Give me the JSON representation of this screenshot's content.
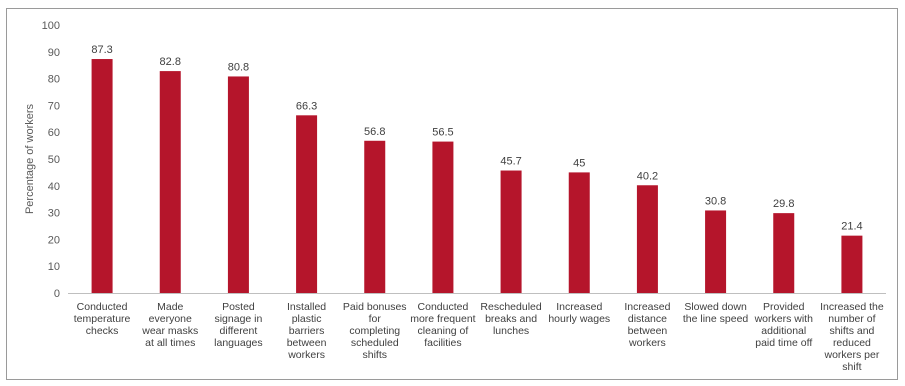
{
  "chart_data": {
    "type": "bar",
    "title": "",
    "xlabel": "",
    "ylabel": "Percentage of workers",
    "ylim": [
      0,
      100
    ],
    "yticks": [
      0,
      10,
      20,
      30,
      40,
      50,
      60,
      70,
      80,
      90,
      100
    ],
    "grid": false,
    "legend": "none",
    "bar_color": "#B5152B",
    "categories": [
      [
        "Conducted",
        "temperature",
        "checks"
      ],
      [
        "Made",
        "everyone",
        "wear masks",
        "at all times"
      ],
      [
        "Posted",
        "signage in",
        "different",
        "languages"
      ],
      [
        "Installed",
        "plastic",
        "barriers",
        "between",
        "workers"
      ],
      [
        "Paid bonuses",
        "for",
        "completing",
        "scheduled",
        "shifts"
      ],
      [
        "Conducted",
        "more frequent",
        "cleaning of",
        "facilities"
      ],
      [
        "Rescheduled",
        "breaks and",
        "lunches"
      ],
      [
        "Increased",
        "hourly wages"
      ],
      [
        "Increased",
        "distance",
        "between",
        "workers"
      ],
      [
        "Slowed down",
        "the line speed"
      ],
      [
        "Provided",
        "workers with",
        "additional",
        "paid time off"
      ],
      [
        "Increased the",
        "number of",
        "shifts and",
        "reduced",
        "workers per",
        "shift"
      ]
    ],
    "values": [
      87.3,
      82.8,
      80.8,
      66.3,
      56.8,
      56.5,
      45.7,
      45,
      40.2,
      30.8,
      29.8,
      21.4
    ],
    "value_labels": [
      "87.3",
      "82.8",
      "80.8",
      "66.3",
      "56.8",
      "56.5",
      "45.7",
      "45",
      "40.2",
      "30.8",
      "29.8",
      "21.4"
    ]
  }
}
